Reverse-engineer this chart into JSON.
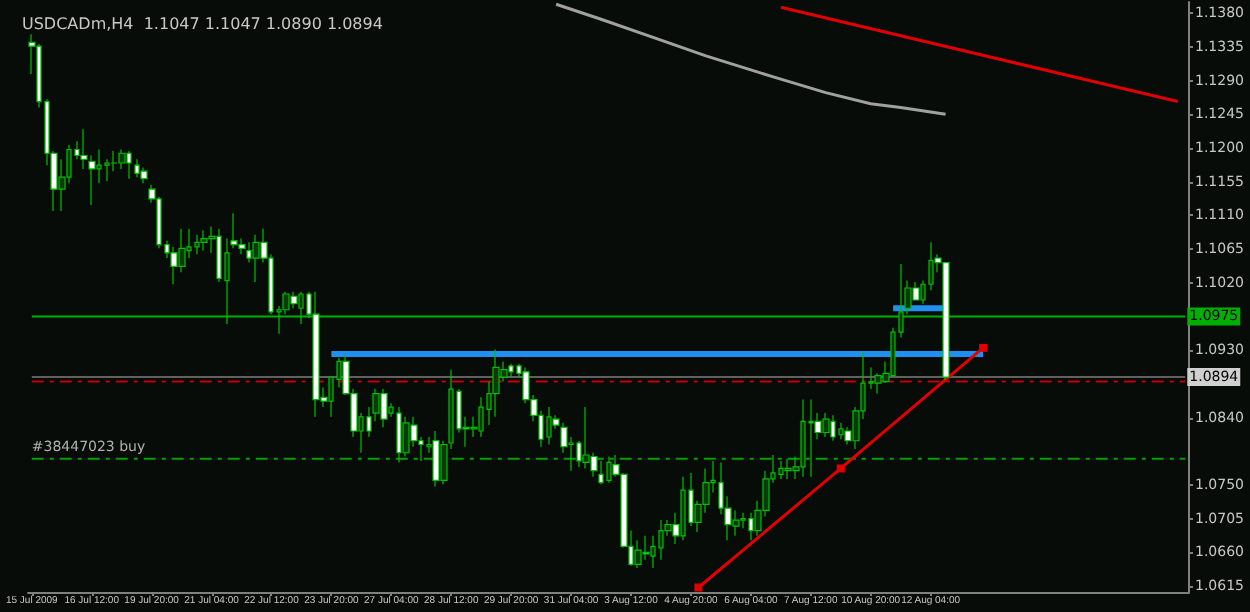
{
  "chart_data": {
    "type": "candlestick",
    "title": "USDCADm,H4  1.1047 1.1047 1.0890 1.0894",
    "color": "#00c000",
    "categories": [
      "15 Jul 2009",
      null,
      null,
      null,
      null,
      null,
      null,
      null,
      "16 Jul 12:00",
      null,
      null,
      null,
      null,
      null,
      null,
      null,
      "19 Jul 20:00",
      null,
      null,
      null,
      null,
      null,
      null,
      null,
      "21 Jul 04:00",
      null,
      null,
      null,
      null,
      null,
      null,
      null,
      "22 Jul 12:00",
      null,
      null,
      null,
      null,
      null,
      null,
      null,
      "23 Jul 20:00",
      null,
      null,
      null,
      null,
      null,
      null,
      null,
      "27 Jul 04:00",
      null,
      null,
      null,
      null,
      null,
      null,
      null,
      "28 Jul 12:00",
      null,
      null,
      null,
      null,
      null,
      null,
      null,
      "29 Jul 20:00",
      null,
      null,
      null,
      null,
      null,
      null,
      null,
      "31 Jul 04:00",
      null,
      null,
      null,
      null,
      null,
      null,
      null,
      "3 Aug 12:00",
      null,
      null,
      null,
      null,
      null,
      null,
      null,
      "4 Aug 20:00",
      null,
      null,
      null,
      null,
      null,
      null,
      null,
      "6 Aug 04:00",
      null,
      null,
      null,
      null,
      null,
      null,
      null,
      "7 Aug 12:00",
      null,
      null,
      null,
      null,
      null,
      null,
      null,
      "10 Aug 20:00",
      null,
      null,
      null,
      null,
      null,
      null,
      null,
      "12 Aug 04:00",
      null,
      null,
      null,
      null,
      null,
      null,
      null,
      null,
      null,
      null,
      null,
      null,
      null,
      null,
      null,
      null,
      null,
      null,
      null,
      null,
      null,
      null,
      null,
      null,
      null,
      null,
      null,
      null,
      null,
      null,
      null,
      null,
      null,
      null
    ],
    "ohlc": [
      [
        1.1341,
        1.1352,
        1.1299,
        1.1336
      ],
      [
        1.1336,
        1.1339,
        1.1254,
        1.1262
      ],
      [
        1.1262,
        1.1265,
        1.1177,
        1.1193
      ],
      [
        1.1193,
        1.1196,
        1.1116,
        1.1145
      ],
      [
        1.1145,
        1.1185,
        1.1116,
        1.1161
      ],
      [
        1.1161,
        1.1204,
        1.1153,
        1.1198
      ],
      [
        1.1198,
        1.1209,
        1.1185,
        1.119
      ],
      [
        1.119,
        1.1225,
        1.1172,
        1.1185
      ],
      [
        1.1182,
        1.119,
        1.1124,
        1.1172
      ],
      [
        1.1172,
        1.1198,
        1.1153,
        1.1177
      ],
      [
        1.1177,
        1.1185,
        1.1156,
        1.118
      ],
      [
        1.118,
        1.1196,
        1.1169,
        1.118
      ],
      [
        1.118,
        1.1198,
        1.1172,
        1.1193
      ],
      [
        1.1193,
        1.1196,
        1.1159,
        1.118
      ],
      [
        1.1177,
        1.1185,
        1.1161,
        1.1166
      ],
      [
        1.1169,
        1.1174,
        1.1153,
        1.1159
      ],
      [
        1.1145,
        1.1151,
        1.1127,
        1.1132
      ],
      [
        1.1132,
        1.1135,
        1.1066,
        1.1071
      ],
      [
        1.1071,
        1.1076,
        1.1053,
        1.106
      ],
      [
        1.106,
        1.1068,
        1.1018,
        1.1042
      ],
      [
        1.1042,
        1.1092,
        1.1034,
        1.1066
      ],
      [
        1.1063,
        1.1092,
        1.1053,
        1.1068
      ],
      [
        1.1068,
        1.1084,
        1.1058,
        1.1074
      ],
      [
        1.1074,
        1.109,
        1.1063,
        1.1079
      ],
      [
        1.1079,
        1.1095,
        1.106,
        1.1082
      ],
      [
        1.1082,
        1.1092,
        1.1021,
        1.1026
      ],
      [
        1.1023,
        1.1079,
        1.0965,
        1.106
      ],
      [
        1.1076,
        1.1113,
        1.1066,
        1.1071
      ],
      [
        1.1071,
        1.1079,
        1.1058,
        1.1066
      ],
      [
        1.1063,
        1.1074,
        1.1047,
        1.1053
      ],
      [
        1.1053,
        1.1084,
        1.1021,
        1.1074
      ],
      [
        1.1074,
        1.1092,
        1.1047,
        1.1053
      ],
      [
        1.1053,
        1.1058,
        1.0978,
        1.0981
      ],
      [
        1.0981,
        1.0989,
        1.0952,
        1.0984
      ],
      [
        1.0984,
        1.1008,
        1.0978,
        1.1005
      ],
      [
        1.1002,
        1.1008,
        1.0986,
        1.0992
      ],
      [
        1.0986,
        1.1008,
        1.0965,
        1.1005
      ],
      [
        1.1005,
        1.1008,
        1.0973,
        1.0978
      ],
      [
        1.0978,
        1.1008,
        1.0841,
        1.0864
      ],
      [
        1.0867,
        1.088,
        1.0854,
        1.0862
      ],
      [
        1.0862,
        1.0894,
        1.0841,
        1.0894
      ],
      [
        1.0891,
        1.092,
        1.088,
        1.0915
      ],
      [
        1.0915,
        1.0923,
        1.087,
        1.0872
      ],
      [
        1.0872,
        1.0878,
        1.0814,
        1.0822
      ],
      [
        1.0822,
        1.0846,
        1.0793,
        1.0841
      ],
      [
        1.0841,
        1.0854,
        1.0814,
        1.0822
      ],
      [
        1.0846,
        1.0878,
        1.0835,
        1.0872
      ],
      [
        1.0872,
        1.0878,
        1.0827,
        1.0838
      ],
      [
        1.0846,
        1.0859,
        1.0841,
        1.0854
      ],
      [
        1.0846,
        1.0854,
        1.078,
        1.0793
      ],
      [
        1.0793,
        1.0841,
        1.0788,
        1.0833
      ],
      [
        1.083,
        1.0841,
        1.0801,
        1.0809
      ],
      [
        1.0809,
        1.0814,
        1.0782,
        1.0804
      ],
      [
        1.0801,
        1.0814,
        1.0793,
        1.0804
      ],
      [
        1.0809,
        1.0822,
        1.0748,
        1.0756
      ],
      [
        1.0756,
        1.0809,
        1.0751,
        1.0804
      ],
      [
        1.0806,
        1.0904,
        1.0798,
        1.0878
      ],
      [
        1.0875,
        1.0878,
        1.082,
        1.0825
      ],
      [
        1.0827,
        1.0841,
        1.0801,
        1.0825
      ],
      [
        1.0825,
        1.0841,
        1.0814,
        1.0827
      ],
      [
        1.0822,
        1.0867,
        1.0814,
        1.0854
      ],
      [
        1.0851,
        1.0888,
        1.083,
        1.0872
      ],
      [
        1.0872,
        1.0931,
        1.0841,
        1.0907
      ],
      [
        1.0894,
        1.0915,
        1.0888,
        1.0904
      ],
      [
        1.0909,
        1.0912,
        1.0894,
        1.0901
      ],
      [
        1.0909,
        1.0912,
        1.0894,
        1.0899
      ],
      [
        1.0901,
        1.0907,
        1.0859,
        1.0864
      ],
      [
        1.0864,
        1.087,
        1.0835,
        1.0843
      ],
      [
        1.0843,
        1.0849,
        1.0801,
        1.0811
      ],
      [
        1.0814,
        1.0854,
        1.0804,
        1.0841
      ],
      [
        1.0838,
        1.0843,
        1.0825,
        1.083
      ],
      [
        1.0827,
        1.0833,
        1.0793,
        1.0801
      ],
      [
        1.0804,
        1.0814,
        1.0769,
        1.0806
      ],
      [
        1.0806,
        1.0809,
        1.0774,
        1.0782
      ],
      [
        1.078,
        1.0854,
        1.0772,
        1.079
      ],
      [
        1.0788,
        1.0793,
        1.0761,
        1.0769
      ],
      [
        1.0764,
        1.0782,
        1.0751,
        1.0753
      ],
      [
        1.0756,
        1.0788,
        1.0753,
        1.078
      ],
      [
        1.0777,
        1.079,
        1.0761,
        1.0764
      ],
      [
        1.0764,
        1.0766,
        1.0666,
        1.0668
      ],
      [
        1.0668,
        1.0689,
        1.0642,
        1.0644
      ],
      [
        1.0644,
        1.0676,
        1.0639,
        1.0663
      ],
      [
        1.066,
        1.0682,
        1.065,
        1.0658
      ],
      [
        1.0655,
        1.0682,
        1.0639,
        1.0668
      ],
      [
        1.0666,
        1.0703,
        1.065,
        1.0689
      ],
      [
        1.0689,
        1.0703,
        1.0682,
        1.0697
      ],
      [
        1.0697,
        1.0713,
        1.0671,
        1.0682
      ],
      [
        1.0682,
        1.0761,
        1.0676,
        1.0743
      ],
      [
        1.0743,
        1.0766,
        1.0695,
        1.07
      ],
      [
        1.07,
        1.0729,
        1.0687,
        1.0724
      ],
      [
        1.0724,
        1.0772,
        1.0713,
        1.0753
      ],
      [
        1.0753,
        1.0782,
        1.074,
        1.0756
      ],
      [
        1.0753,
        1.078,
        1.0711,
        1.0719
      ],
      [
        1.0719,
        1.0735,
        1.0676,
        1.0697
      ],
      [
        1.0695,
        1.0716,
        1.0682,
        1.0703
      ],
      [
        1.0703,
        1.0713,
        1.0692,
        1.0705
      ],
      [
        1.0705,
        1.0713,
        1.0676,
        1.0689
      ],
      [
        1.0689,
        1.0729,
        1.0682,
        1.0716
      ],
      [
        1.0716,
        1.0769,
        1.0708,
        1.0758
      ],
      [
        1.0758,
        1.079,
        1.0753,
        1.0766
      ],
      [
        1.0764,
        1.0782,
        1.0758,
        1.0772
      ],
      [
        1.0769,
        1.0785,
        1.0758,
        1.0772
      ],
      [
        1.0769,
        1.0788,
        1.0758,
        1.0774
      ],
      [
        1.0774,
        1.0864,
        1.0761,
        1.0835
      ],
      [
        1.0835,
        1.0864,
        1.0761,
        1.0833
      ],
      [
        1.0835,
        1.0846,
        1.0811,
        1.082
      ],
      [
        1.082,
        1.0846,
        1.0814,
        1.0838
      ],
      [
        1.0835,
        1.0843,
        1.0809,
        1.0814
      ],
      [
        1.0817,
        1.0833,
        1.0811,
        1.0825
      ],
      [
        1.0822,
        1.0827,
        1.0804,
        1.0809
      ],
      [
        1.0809,
        1.0854,
        1.0798,
        1.0849
      ],
      [
        1.0849,
        1.0928,
        1.0838,
        1.0886
      ],
      [
        1.0886,
        1.0907,
        1.0878,
        1.0888
      ],
      [
        1.0886,
        1.0899,
        1.0872,
        1.0896
      ],
      [
        1.0888,
        1.0915,
        1.0886,
        1.0899
      ],
      [
        1.0896,
        1.096,
        1.0894,
        1.0954
      ],
      [
        1.0954,
        1.1045,
        1.0947,
        1.0981
      ],
      [
        1.0986,
        1.1023,
        1.0978,
        1.1013
      ],
      [
        1.1013,
        1.1021,
        1.0997,
        1.0997
      ],
      [
        1.0997,
        1.1023,
        1.0992,
        1.1018
      ],
      [
        1.1018,
        1.1074,
        1.101,
        1.105
      ],
      [
        1.1053,
        1.1058,
        1.1034,
        1.1047
      ],
      [
        1.1047,
        1.1047,
        1.089,
        1.0894
      ],
      null,
      null,
      null,
      null,
      null,
      null,
      null,
      null,
      null,
      null,
      null,
      null,
      null,
      null,
      null,
      null,
      null,
      null,
      null,
      null,
      null,
      null,
      null,
      null,
      null,
      null,
      null,
      null,
      null,
      null,
      null,
      null
    ],
    "series": [
      {
        "type": "line",
        "color": "#e00000",
        "values": [
          null,
          null,
          null,
          null,
          null,
          null,
          null,
          null,
          null,
          null,
          null,
          null,
          null,
          null,
          null,
          null,
          null,
          null,
          null,
          null,
          null,
          null,
          null,
          null,
          null,
          null,
          null,
          null,
          null,
          null,
          null,
          null,
          null,
          null,
          null,
          null,
          null,
          null,
          null,
          null,
          null,
          null,
          null,
          null,
          null,
          null,
          null,
          null,
          null,
          null,
          null,
          null,
          null,
          null,
          null,
          null,
          null,
          null,
          null,
          null,
          null,
          null,
          null,
          null,
          null,
          null,
          null,
          null,
          null,
          null,
          null,
          null,
          null,
          null,
          null,
          null,
          null,
          null,
          null,
          null,
          null,
          null,
          null,
          null,
          null,
          null,
          null,
          null,
          null,
          null,
          null,
          null,
          null,
          null,
          null,
          null,
          null,
          null,
          null,
          null,
          1.1388,
          null,
          null,
          null,
          null,
          null,
          null,
          null,
          null,
          null,
          null,
          null,
          null,
          null,
          null,
          null,
          null,
          null,
          null,
          null,
          null,
          null,
          null,
          null,
          null,
          null,
          null,
          null,
          null,
          null,
          null,
          null,
          null,
          null,
          null,
          null,
          null,
          null,
          null,
          null,
          null,
          null,
          null,
          null,
          null,
          null,
          null,
          null,
          null,
          null,
          null,
          null,
          null,
          1.1262,
          null
        ]
      },
      {
        "type": "line",
        "color": "#a0a0a0",
        "values": [
          null,
          null,
          null,
          null,
          null,
          null,
          null,
          null,
          null,
          null,
          null,
          null,
          null,
          null,
          null,
          null,
          null,
          null,
          null,
          null,
          null,
          null,
          null,
          null,
          null,
          null,
          null,
          null,
          null,
          null,
          null,
          null,
          null,
          null,
          null,
          null,
          null,
          null,
          null,
          null,
          null,
          null,
          null,
          null,
          null,
          null,
          null,
          null,
          null,
          null,
          null,
          null,
          null,
          null,
          null,
          null,
          null,
          null,
          null,
          null,
          null,
          null,
          null,
          null,
          null,
          null,
          null,
          null,
          null,
          null,
          1.1392,
          null,
          null,
          null,
          null,
          null,
          1.1372,
          null,
          null,
          null,
          null,
          null,
          null,
          null,
          1.1344,
          null,
          null,
          null,
          null,
          null,
          1.1323,
          null,
          null,
          null,
          null,
          null,
          null,
          null,
          null,
          1.1295,
          null,
          null,
          null,
          null,
          null,
          null,
          1.1274,
          null,
          null,
          null,
          null,
          null,
          1.1259,
          null,
          null,
          null,
          1.1254,
          null,
          null,
          null,
          null,
          null,
          1.1245,
          null,
          null,
          null,
          null,
          null,
          null,
          null,
          null,
          null,
          null,
          null,
          null,
          null,
          null,
          null,
          null,
          null,
          null,
          null,
          null,
          null,
          null,
          null,
          null,
          null,
          null,
          null,
          null,
          null,
          null,
          null,
          null
        ]
      },
      {
        "type": "line",
        "color": "#e00000",
        "marker": "square",
        "values": [
          null,
          null,
          null,
          null,
          null,
          null,
          null,
          null,
          null,
          null,
          null,
          null,
          null,
          null,
          null,
          null,
          null,
          null,
          null,
          null,
          null,
          null,
          null,
          null,
          null,
          null,
          null,
          null,
          null,
          null,
          null,
          null,
          null,
          null,
          null,
          null,
          null,
          null,
          null,
          null,
          null,
          null,
          null,
          null,
          null,
          null,
          null,
          null,
          null,
          null,
          null,
          null,
          null,
          null,
          null,
          null,
          null,
          null,
          null,
          null,
          null,
          null,
          null,
          null,
          null,
          null,
          null,
          null,
          null,
          null,
          null,
          null,
          null,
          null,
          null,
          null,
          null,
          null,
          null,
          null,
          null,
          null,
          null,
          null,
          null,
          null,
          null,
          null,
          null,
          1.0613,
          null,
          null,
          null,
          null,
          null,
          null,
          null,
          null,
          null,
          null,
          null,
          null,
          null,
          null,
          null,
          null,
          null,
          null,
          1.0772,
          null,
          null,
          null,
          null,
          null,
          null,
          null,
          null,
          null,
          null,
          null,
          null,
          null,
          null,
          null,
          null,
          null,
          null,
          1.0933,
          null,
          null,
          null,
          null,
          null,
          null,
          null,
          null,
          null,
          null,
          null,
          null,
          null,
          null,
          null,
          null,
          null,
          null,
          null,
          null,
          null,
          null,
          null,
          null,
          null,
          null,
          null
        ]
      },
      {
        "type": "line",
        "color": "#2090f0",
        "values": [
          null,
          null,
          null,
          null,
          null,
          null,
          null,
          null,
          null,
          null,
          null,
          null,
          null,
          null,
          null,
          null,
          null,
          null,
          null,
          null,
          null,
          null,
          null,
          null,
          null,
          null,
          null,
          null,
          null,
          null,
          null,
          null,
          null,
          null,
          null,
          null,
          null,
          null,
          null,
          null,
          1.0925,
          null,
          null,
          null,
          null,
          null,
          null,
          null,
          null,
          null,
          null,
          null,
          null,
          null,
          null,
          null,
          null,
          null,
          null,
          null,
          null,
          null,
          null,
          null,
          null,
          null,
          null,
          null,
          null,
          null,
          null,
          null,
          null,
          null,
          null,
          null,
          null,
          null,
          null,
          null,
          null,
          null,
          null,
          null,
          null,
          null,
          null,
          null,
          null,
          null,
          null,
          null,
          null,
          null,
          null,
          null,
          null,
          null,
          null,
          null,
          null,
          null,
          null,
          null,
          null,
          null,
          null,
          null,
          null,
          null,
          null,
          null,
          null,
          null,
          null,
          null,
          null,
          null,
          null,
          null,
          null,
          null,
          null,
          null,
          null,
          null,
          null,
          1.0925,
          null,
          null,
          null,
          null,
          null,
          null,
          null,
          null,
          null,
          null,
          null,
          null,
          null,
          null,
          null,
          null,
          null,
          null,
          null,
          null,
          null,
          null,
          null,
          null,
          null,
          null,
          null
        ]
      },
      {
        "type": "line",
        "color": "#2090f0",
        "values": [
          null,
          null,
          null,
          null,
          null,
          null,
          null,
          null,
          null,
          null,
          null,
          null,
          null,
          null,
          null,
          null,
          null,
          null,
          null,
          null,
          null,
          null,
          null,
          null,
          null,
          null,
          null,
          null,
          null,
          null,
          null,
          null,
          null,
          null,
          null,
          null,
          null,
          null,
          null,
          null,
          null,
          null,
          null,
          null,
          null,
          null,
          null,
          null,
          null,
          null,
          null,
          null,
          null,
          null,
          null,
          null,
          null,
          null,
          null,
          null,
          null,
          null,
          null,
          null,
          null,
          null,
          null,
          null,
          null,
          null,
          null,
          null,
          null,
          null,
          null,
          null,
          null,
          null,
          null,
          null,
          null,
          null,
          null,
          null,
          null,
          null,
          null,
          null,
          null,
          null,
          null,
          null,
          null,
          null,
          null,
          null,
          null,
          null,
          null,
          null,
          null,
          null,
          null,
          null,
          null,
          null,
          null,
          null,
          null,
          null,
          null,
          null,
          null,
          null,
          null,
          1.0986,
          null,
          null,
          null,
          null,
          null,
          null,
          1.0986,
          null,
          null,
          null,
          null,
          null,
          null,
          null,
          null,
          null,
          null,
          null,
          null,
          null,
          null,
          null,
          null,
          null,
          null,
          null,
          null,
          null,
          null,
          null,
          null,
          null,
          null,
          null,
          null,
          null,
          null,
          null,
          null
        ]
      }
    ],
    "ylim": [
      1.0607,
      1.1395
    ],
    "yticks": [
      {
        "value": 1.138,
        "label": "1.1380"
      },
      1.1335,
      {
        "value": 1.129,
        "label": "1.1290"
      },
      1.1245,
      {
        "value": 1.12,
        "label": "1.1200"
      },
      1.1155,
      {
        "value": 1.111,
        "label": "1.1110"
      },
      1.1065,
      {
        "value": 1.102,
        "label": "1.1020"
      },
      {
        "value": 1.093,
        "label": "1.0930"
      },
      {
        "value": 1.084,
        "label": "1.0840"
      },
      {
        "value": 1.075,
        "label": "1.0750"
      },
      1.0705,
      {
        "value": 1.066,
        "label": "1.0660"
      },
      1.0615
    ],
    "ref_lines": [
      {
        "axis": "y",
        "value": 1.0975,
        "label": "1.0975",
        "color": "#00b000",
        "line_style": "solid"
      },
      {
        "axis": "y",
        "value": 1.0894,
        "label": "1.0894",
        "color": "#606060",
        "line_style": "solid"
      },
      {
        "axis": "y",
        "value": 1.0888,
        "color": "#c00000",
        "line_style": "dashed"
      },
      {
        "axis": "y",
        "value": 1.0785,
        "label": "#38447023 buy",
        "color": "#00a000",
        "line_style": "dashed"
      }
    ]
  }
}
